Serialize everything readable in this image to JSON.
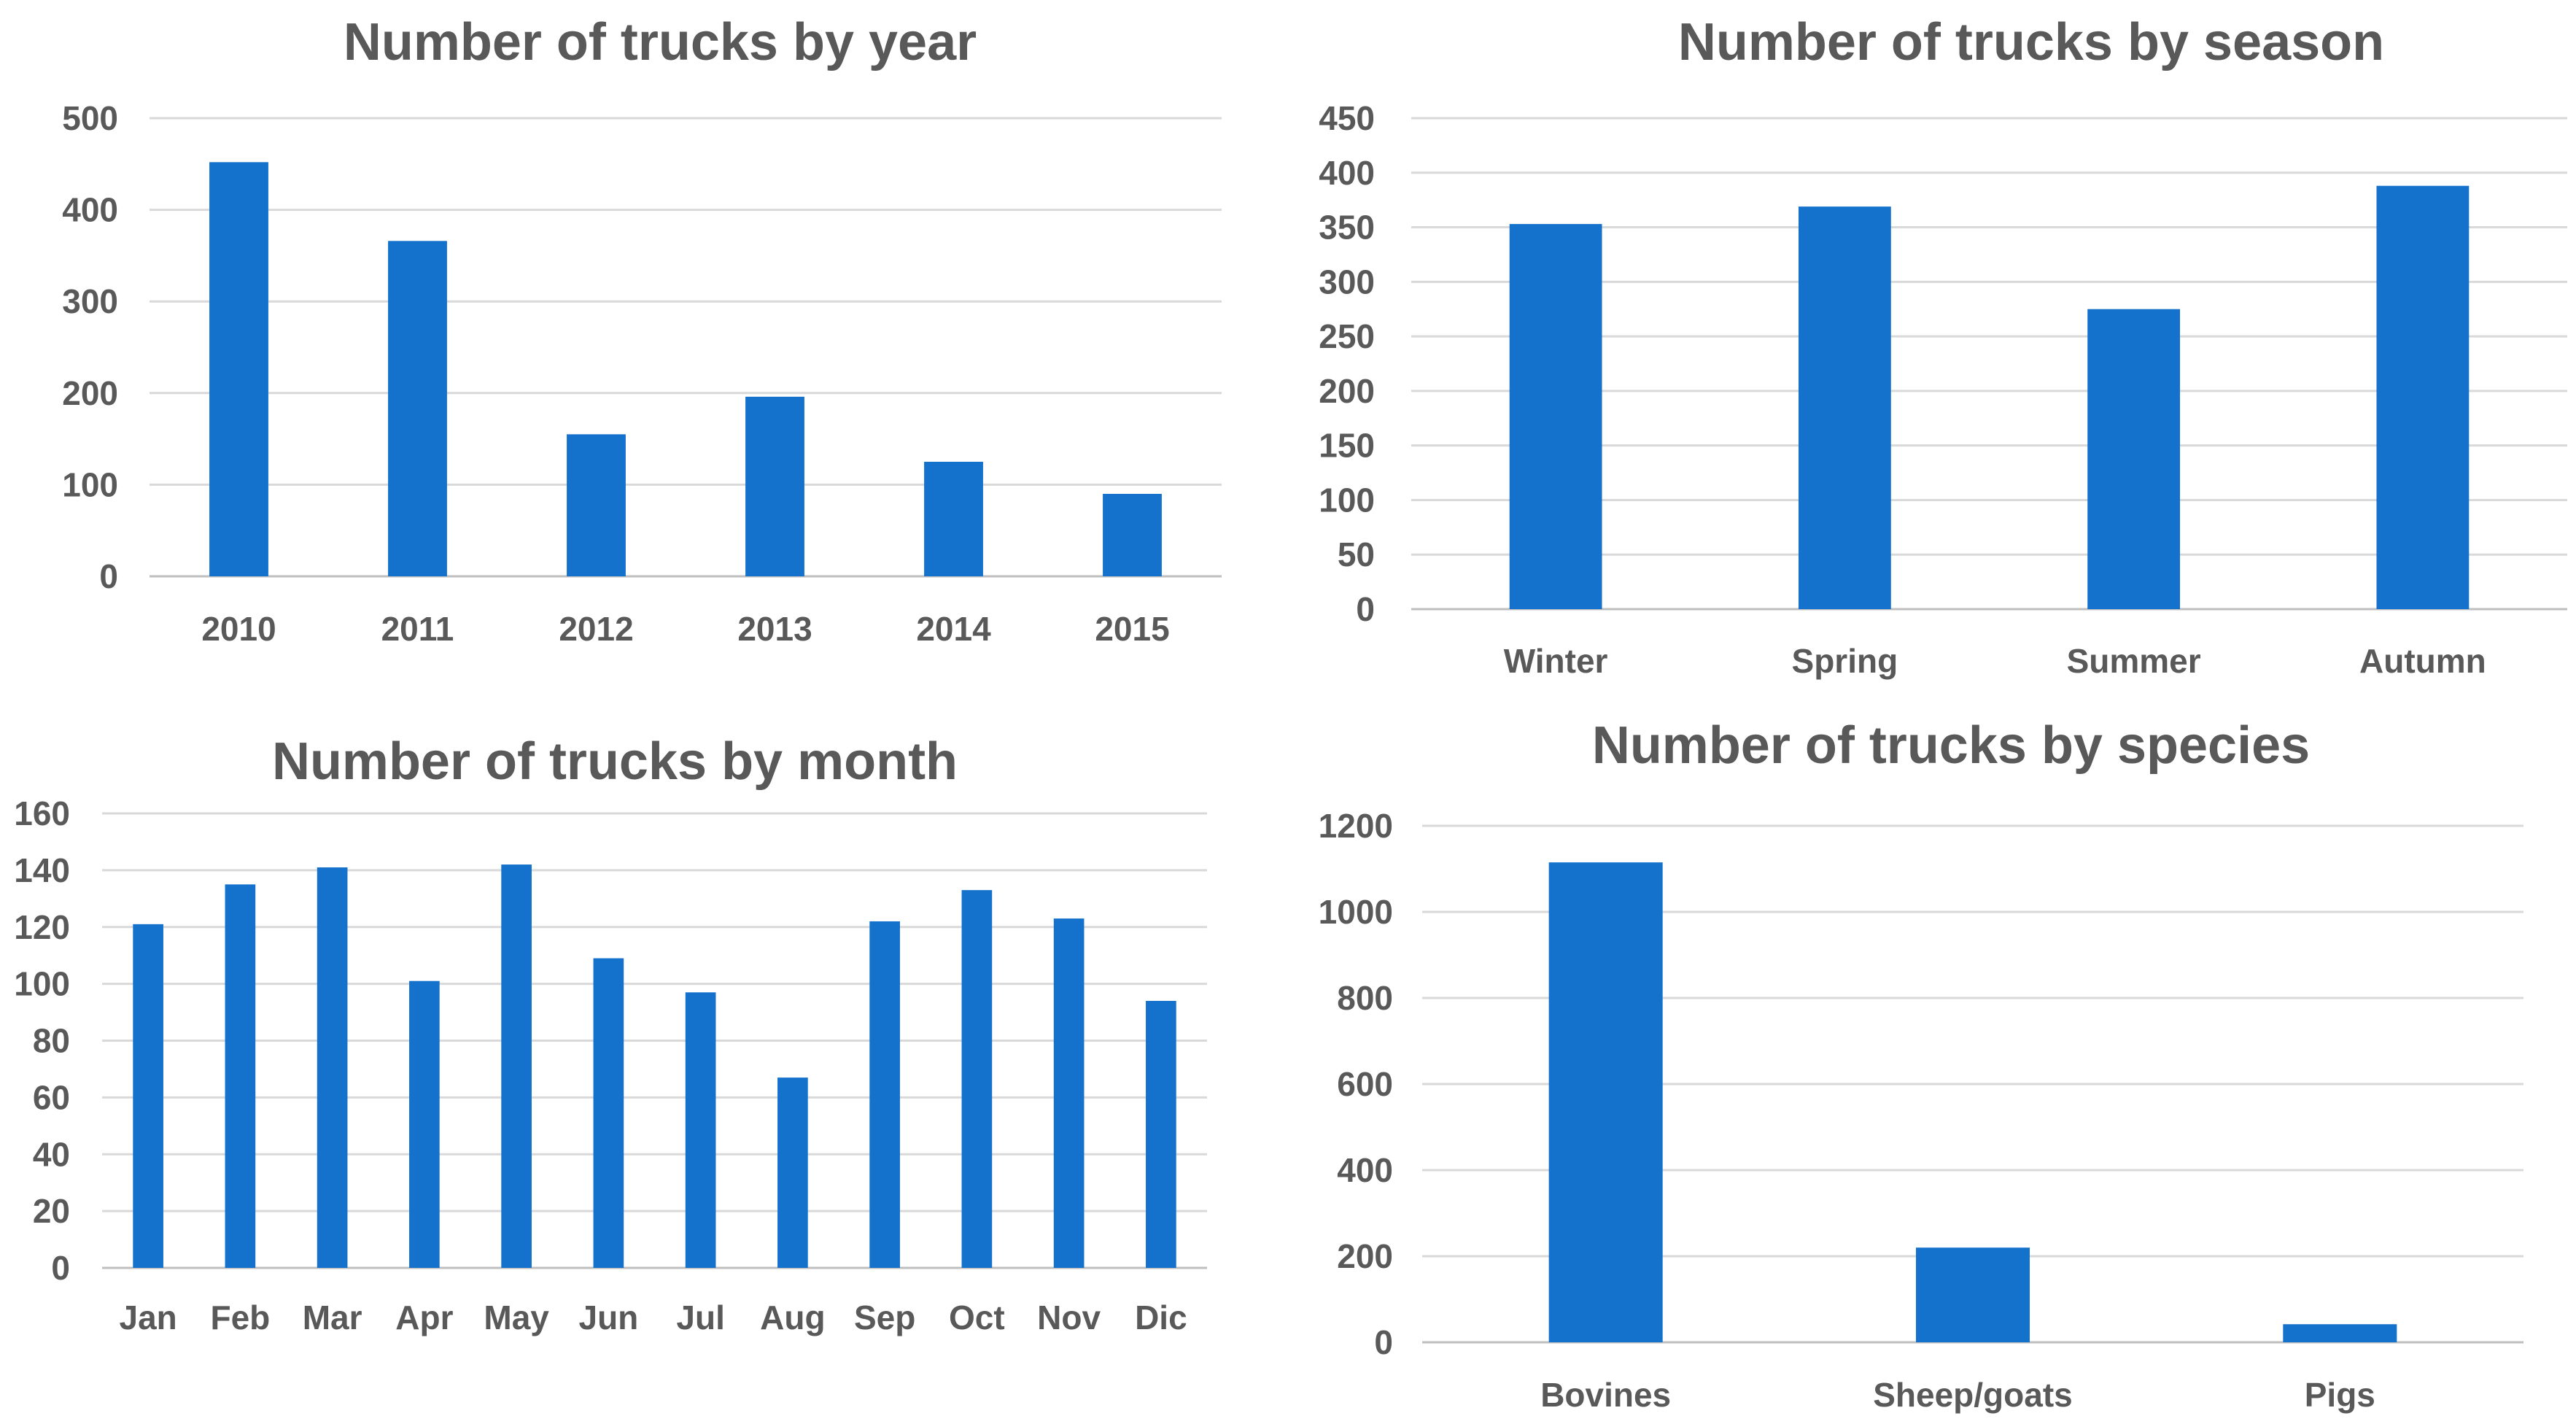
{
  "colors": {
    "bar": "#1572cc",
    "text": "#595959",
    "grid": "#d9d9d9",
    "axis": "#bfbfbf"
  },
  "chart_data": [
    {
      "type": "bar",
      "title": "Number of trucks by year",
      "categories": [
        "2010",
        "2011",
        "2012",
        "2013",
        "2014",
        "2015"
      ],
      "values": [
        452,
        366,
        155,
        196,
        125,
        90
      ],
      "yticks": [
        "0",
        "100",
        "200",
        "300",
        "400",
        "500"
      ],
      "ylim": [
        0,
        500
      ],
      "grid": true,
      "legend": "none",
      "xlabel": "",
      "ylabel": ""
    },
    {
      "type": "bar",
      "title": "Number of trucks by season",
      "categories": [
        "Winter",
        "Spring",
        "Summer",
        "Autumn"
      ],
      "values": [
        353,
        369,
        275,
        388
      ],
      "yticks": [
        "0",
        "50",
        "100",
        "150",
        "200",
        "250",
        "300",
        "350",
        "400",
        "450"
      ],
      "ylim": [
        0,
        450
      ],
      "grid": true,
      "legend": "none",
      "xlabel": "",
      "ylabel": ""
    },
    {
      "type": "bar",
      "title": "Number of trucks by month",
      "categories": [
        "Jan",
        "Feb",
        "Mar",
        "Apr",
        "May",
        "Jun",
        "Jul",
        "Aug",
        "Sep",
        "Oct",
        "Nov",
        "Dic"
      ],
      "values": [
        121,
        135,
        141,
        101,
        142,
        109,
        97,
        67,
        122,
        133,
        123,
        94
      ],
      "yticks": [
        "0",
        "20",
        "40",
        "60",
        "80",
        "100",
        "120",
        "140",
        "160"
      ],
      "ylim": [
        0,
        160
      ],
      "grid": true,
      "legend": "none",
      "xlabel": "",
      "ylabel": ""
    },
    {
      "type": "bar",
      "title": "Number of trucks by species",
      "categories": [
        "Bovines",
        "Sheep/goats",
        "Pigs"
      ],
      "values": [
        1115,
        220,
        42
      ],
      "yticks": [
        "0",
        "200",
        "400",
        "600",
        "800",
        "1000",
        "1200"
      ],
      "ylim": [
        0,
        1200
      ],
      "grid": true,
      "legend": "none",
      "xlabel": "",
      "ylabel": ""
    }
  ]
}
